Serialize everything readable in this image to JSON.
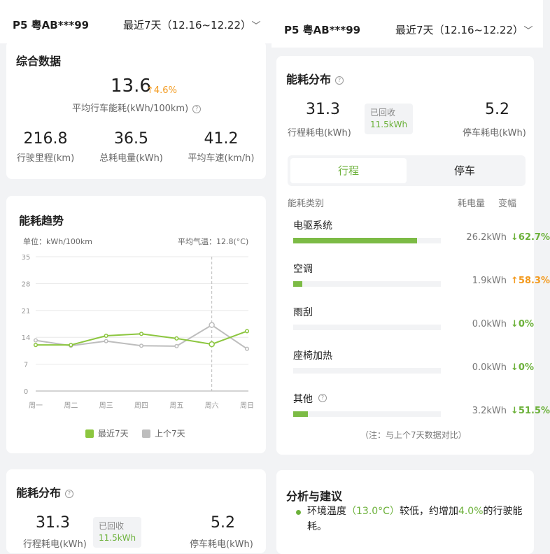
{
  "header": {
    "plate": "P5 粤AB***99",
    "range": "最近7天（12.16~12.22）",
    "chevron_icon": "chevron-down-icon"
  },
  "summary": {
    "title": "综合数据",
    "avg_consumption": "13.6",
    "avg_change": "4.6%",
    "avg_label": "平均行车能耗(kWh/100km)",
    "stats": [
      {
        "value": "216.8",
        "label": "行驶里程(km)"
      },
      {
        "value": "36.5",
        "label": "总耗电量(kWh)"
      },
      {
        "value": "41.2",
        "label": "平均车速(km/h)"
      }
    ]
  },
  "trend": {
    "title": "能耗趋势",
    "unit": "单位：kWh/100km",
    "temperature": "平均气温：12.8(°C)",
    "legend": [
      "最近7天",
      "上个7天"
    ]
  },
  "chart_data": {
    "type": "line",
    "categories": [
      "周一",
      "周二",
      "周三",
      "周四",
      "周五",
      "周六",
      "周日"
    ],
    "yticks": [
      0,
      7,
      14,
      21,
      28,
      35
    ],
    "ylim": [
      0,
      35
    ],
    "grid": true,
    "highlight_index": 5,
    "series": [
      {
        "name": "最近7天",
        "color": "#8cc63f",
        "values": [
          12.0,
          12.0,
          14.4,
          14.9,
          13.7,
          12.2,
          15.6
        ]
      },
      {
        "name": "上个7天",
        "color": "#bdbdbd",
        "values": [
          13.2,
          11.8,
          13.0,
          11.8,
          11.7,
          17.2,
          11.0
        ]
      }
    ],
    "legend_position": "bottom"
  },
  "distribution": {
    "title": "能耗分布",
    "drive_value": "31.3",
    "drive_label": "行程耗电(kWh)",
    "recovered_label": "已回收",
    "recovered_value": "11.5kWh",
    "park_value": "5.2",
    "park_label": "停车耗电(kWh)",
    "tabs": [
      "行程",
      "停车"
    ],
    "col_category": "能耗类别",
    "col_consumption": "耗电量",
    "col_change": "变幅",
    "items": [
      {
        "name": "电驱系统",
        "fraction": 0.84,
        "value": "26.2kWh",
        "change": "62.7%",
        "dir": "down"
      },
      {
        "name": "空调",
        "fraction": 0.06,
        "value": "1.9kWh",
        "change": "58.3%",
        "dir": "up"
      },
      {
        "name": "雨刮",
        "fraction": 0,
        "value": "0.0kWh",
        "change": "0%",
        "dir": "down"
      },
      {
        "name": "座椅加热",
        "fraction": 0,
        "value": "0.0kWh",
        "change": "0%",
        "dir": "down"
      },
      {
        "name": "其他",
        "fraction": 0.1,
        "value": "3.2kWh",
        "change": "51.5%",
        "dir": "down"
      }
    ],
    "note": "（注：与上个7天数据对比）"
  },
  "advice": {
    "title": "分析与建议",
    "p1": "环境温度",
    "temp": "（13.0°C）",
    "p2": "较低，约增加",
    "pct": "4.0%",
    "p3": "的行驶能耗。"
  },
  "colors": {
    "accent": "#6cb13a",
    "up": "#f39a1e",
    "bar": "#7cbb45",
    "grey_series": "#bdbdbd"
  }
}
